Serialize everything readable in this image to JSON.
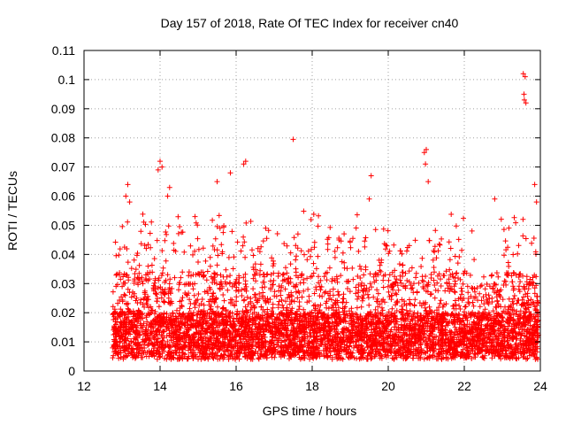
{
  "chart_data": {
    "type": "scatter",
    "title": "Day 157 of 2018, Rate Of TEC Index for receiver cn40",
    "xlabel": "GPS time / hours",
    "ylabel": "ROTI / TECUs",
    "xlim": [
      12,
      24
    ],
    "ylim": [
      0,
      0.11
    ],
    "x_ticks": [
      12,
      14,
      16,
      18,
      20,
      22,
      24
    ],
    "x_tick_labels": [
      "12",
      "14",
      "16",
      "18",
      "20",
      "22",
      "24"
    ],
    "y_ticks": [
      0,
      0.01,
      0.02,
      0.03,
      0.04,
      0.05,
      0.06,
      0.07,
      0.08,
      0.09,
      0.1,
      0.11
    ],
    "y_tick_labels": [
      "0",
      "0.01",
      "0.02",
      "0.03",
      "0.04",
      "0.05",
      "0.06",
      "0.07",
      "0.08",
      "0.09",
      "0.1",
      "0.11"
    ],
    "grid": true,
    "marker": "+",
    "color": "#ff0000",
    "series": [
      {
        "name": "ROTI",
        "data_start_hour": 12.75,
        "data_end_hour": 23.95,
        "baseline_range": [
          0.004,
          0.02
        ],
        "typical_peak_range": [
          0.02,
          0.045
        ],
        "notable_points": [
          {
            "x": 13.15,
            "y": 0.064
          },
          {
            "x": 13.1,
            "y": 0.06
          },
          {
            "x": 13.2,
            "y": 0.058
          },
          {
            "x": 14.0,
            "y": 0.072
          },
          {
            "x": 14.05,
            "y": 0.07
          },
          {
            "x": 13.95,
            "y": 0.069
          },
          {
            "x": 14.25,
            "y": 0.063
          },
          {
            "x": 14.2,
            "y": 0.06
          },
          {
            "x": 15.5,
            "y": 0.065
          },
          {
            "x": 15.85,
            "y": 0.068
          },
          {
            "x": 16.25,
            "y": 0.072
          },
          {
            "x": 16.2,
            "y": 0.071
          },
          {
            "x": 17.5,
            "y": 0.0795
          },
          {
            "x": 19.55,
            "y": 0.067
          },
          {
            "x": 19.5,
            "y": 0.059
          },
          {
            "x": 21.0,
            "y": 0.076
          },
          {
            "x": 20.95,
            "y": 0.075
          },
          {
            "x": 20.98,
            "y": 0.071
          },
          {
            "x": 21.05,
            "y": 0.065
          },
          {
            "x": 22.8,
            "y": 0.059
          },
          {
            "x": 23.55,
            "y": 0.102
          },
          {
            "x": 23.6,
            "y": 0.101
          },
          {
            "x": 23.57,
            "y": 0.095
          },
          {
            "x": 23.58,
            "y": 0.093
          },
          {
            "x": 23.62,
            "y": 0.092
          },
          {
            "x": 23.85,
            "y": 0.064
          },
          {
            "x": 23.9,
            "y": 0.058
          }
        ]
      }
    ]
  }
}
